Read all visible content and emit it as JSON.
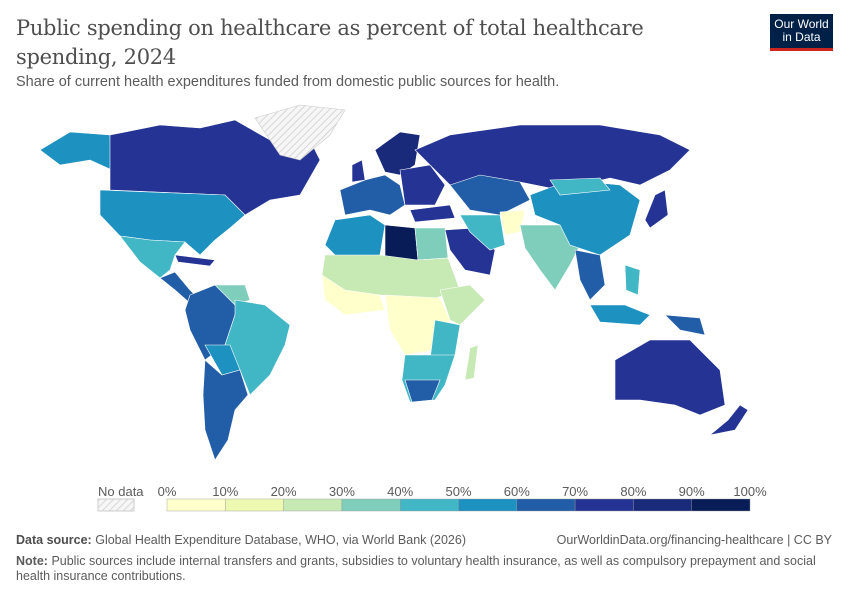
{
  "header": {
    "title": "Public spending on healthcare as percent of total healthcare spending, 2024",
    "subtitle": "Share of current health expenditures funded from domestic public sources for health.",
    "logo_text": "Our World in Data"
  },
  "legend": {
    "no_data_label": "No data",
    "ticks": [
      "0%",
      "10%",
      "20%",
      "30%",
      "40%",
      "50%",
      "60%",
      "70%",
      "80%",
      "90%",
      "100%"
    ],
    "bins": [
      "#ffffcc",
      "#edf8b1",
      "#c7e9b4",
      "#7fcdbb",
      "#41b6c4",
      "#1d91c0",
      "#225ea8",
      "#253494",
      "#1a2a7a",
      "#081d58"
    ],
    "no_data_color": "hatched-grey"
  },
  "footer": {
    "source_label": "Data source:",
    "source_text": "Global Health Expenditure Database, WHO, via World Bank (2026)",
    "url": "OurWorldinData.org/financing-healthcare | CC BY",
    "note_label": "Note:",
    "note_text": "Public sources include internal transfers and grants, subsidies to voluntary health insurance, as well as compulsory prepayment and social health insurance contributions."
  }
}
